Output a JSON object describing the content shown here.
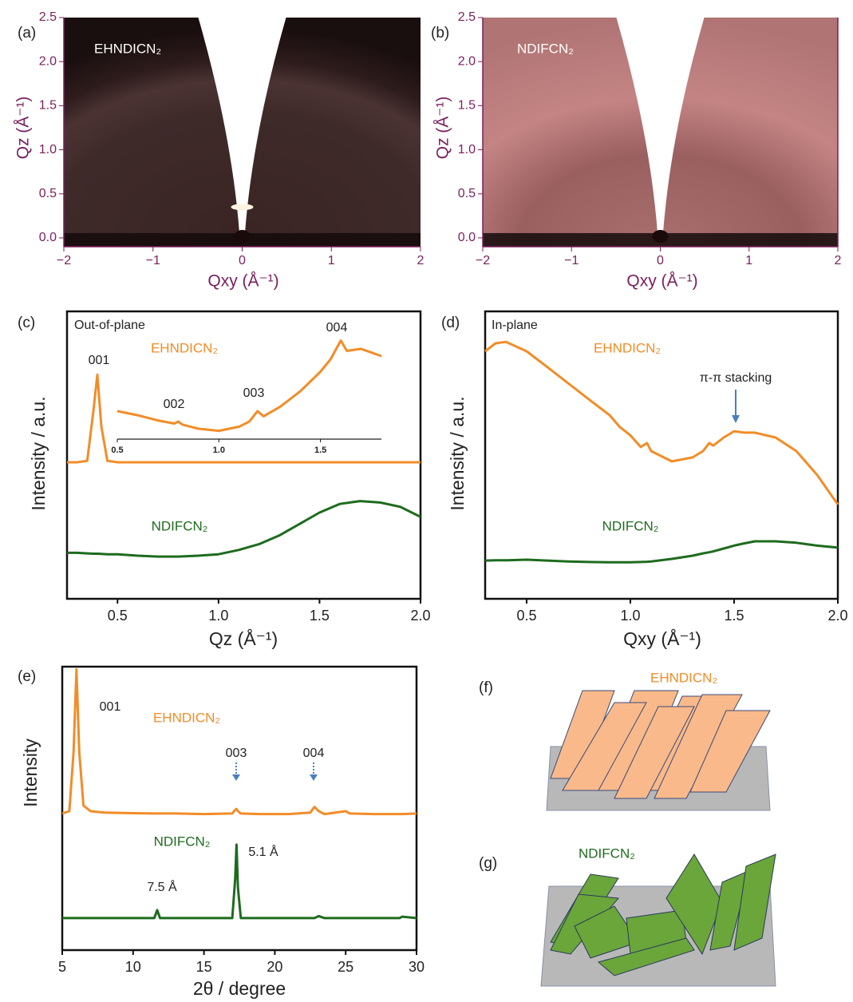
{
  "chart_data": [
    {
      "type": "image",
      "panel_label": "(a)",
      "label": "EHNDICN₂",
      "x_label": "Qxy (Å⁻¹)",
      "y_label": "Qz (Å⁻¹)",
      "xlim": [
        -2,
        2
      ],
      "ylim": [
        -0.1,
        2.5
      ],
      "xticks": [
        {
          "value": -2,
          "label": "−2"
        },
        {
          "value": -1,
          "label": "−1"
        },
        0,
        1,
        2
      ],
      "yticks": [
        {
          "value": 0,
          "label": "0.0"
        },
        0.5,
        {
          "value": 1,
          "label": "1.0"
        },
        1.5,
        {
          "value": 2,
          "label": "2.0"
        },
        2.5
      ],
      "axis_color": "#7a1f5c"
    },
    {
      "type": "image",
      "panel_label": "(b)",
      "label": "NDIFCN₂",
      "x_label": "Qxy (Å⁻¹)",
      "y_label": "Qz (Å⁻¹)",
      "xlim": [
        -2,
        2
      ],
      "ylim": [
        -0.1,
        2.5
      ],
      "xticks": [
        {
          "value": -2,
          "label": "−2"
        },
        {
          "value": -1,
          "label": "−1"
        },
        0,
        1,
        2
      ],
      "yticks": [
        {
          "value": 0,
          "label": "0.0"
        },
        0.5,
        {
          "value": 1,
          "label": "1.0"
        },
        1.5,
        {
          "value": 2,
          "label": "2.0"
        },
        2.5
      ],
      "axis_color": "#7a1f5c"
    },
    {
      "type": "line",
      "panel_label": "(c)",
      "x_label": "Qz (Å⁻¹)",
      "y_label": "Intensity / a.u.",
      "annotations": [
        "Out-of-plane",
        "001"
      ],
      "xlim": [
        0.25,
        2.0
      ],
      "ylim": [
        0,
        10
      ],
      "xticks": [
        0.5,
        {
          "value": 1,
          "label": "1.0"
        },
        1.5,
        {
          "value": 2,
          "label": "2.0"
        }
      ],
      "x": [
        0.25,
        0.3,
        0.35,
        0.38,
        0.4,
        0.42,
        0.45,
        0.5,
        0.6,
        0.7,
        0.8,
        0.9,
        1.0,
        1.1,
        1.2,
        1.3,
        1.4,
        1.5,
        1.6,
        1.7,
        1.8,
        1.9,
        2.0
      ],
      "series": [
        {
          "name": "EHNDICN₂",
          "color": "#f28c28",
          "values": [
            4.75,
            4.75,
            4.8,
            6.5,
            7.8,
            6.0,
            4.8,
            4.75,
            4.75,
            4.75,
            4.75,
            4.75,
            4.75,
            4.75,
            4.75,
            4.75,
            4.75,
            4.75,
            4.75,
            4.75,
            4.75,
            4.75,
            4.75
          ]
        },
        {
          "name": "NDIFCN₂",
          "color": "#1e6b1e",
          "values": [
            1.6,
            1.6,
            1.58,
            1.57,
            1.57,
            1.56,
            1.55,
            1.55,
            1.5,
            1.47,
            1.47,
            1.5,
            1.55,
            1.7,
            1.9,
            2.2,
            2.6,
            3.0,
            3.3,
            3.4,
            3.35,
            3.2,
            2.85
          ]
        }
      ]
    },
    {
      "type": "line",
      "annotations": [
        "002",
        "003",
        "004"
      ],
      "xlim": [
        0.5,
        1.8
      ],
      "ylim": [
        0,
        10
      ],
      "xticks": [
        0.5,
        {
          "value": 1,
          "label": "1.0"
        },
        1.5
      ],
      "x": [
        0.5,
        0.6,
        0.7,
        0.78,
        0.8,
        0.82,
        0.9,
        1.0,
        1.1,
        1.15,
        1.19,
        1.22,
        1.3,
        1.4,
        1.5,
        1.55,
        1.6,
        1.63,
        1.7,
        1.8
      ],
      "series": [
        {
          "color": "#f28c28",
          "values": [
            2.7,
            2.3,
            1.8,
            1.5,
            1.7,
            1.4,
            1.0,
            0.8,
            1.2,
            1.7,
            2.7,
            2.2,
            3.1,
            4.6,
            6.5,
            7.7,
            9.5,
            8.5,
            8.7,
            8.0
          ]
        }
      ]
    },
    {
      "type": "line",
      "panel_label": "(d)",
      "x_label": "Qxy (Å⁻¹)",
      "y_label": "Intensity / a.u.",
      "annotations": [
        "In-plane",
        "π-π stacking"
      ],
      "xlim": [
        0.3,
        2.0
      ],
      "ylim": [
        0,
        10
      ],
      "xticks": [
        0.5,
        {
          "value": 1,
          "label": "1.0"
        },
        1.5,
        {
          "value": 2,
          "label": "2.0"
        }
      ],
      "x": [
        0.3,
        0.35,
        0.4,
        0.5,
        0.6,
        0.7,
        0.8,
        0.9,
        0.95,
        1.0,
        1.05,
        1.08,
        1.1,
        1.2,
        1.3,
        1.35,
        1.38,
        1.4,
        1.45,
        1.5,
        1.55,
        1.6,
        1.7,
        1.8,
        1.9,
        2.0
      ],
      "series": [
        {
          "name": "EHNDICN₂",
          "color": "#f28c28",
          "values": [
            8.61,
            8.89,
            8.94,
            8.61,
            8.06,
            7.5,
            6.94,
            6.39,
            5.97,
            5.69,
            5.28,
            5.42,
            5.14,
            4.78,
            4.92,
            5.14,
            5.42,
            5.33,
            5.61,
            5.83,
            5.78,
            5.78,
            5.61,
            5.14,
            4.31,
            3.28
          ]
        },
        {
          "name": "NDIFCN₂",
          "color": "#1e6b1e",
          "values": [
            1.33,
            1.34,
            1.34,
            1.36,
            1.33,
            1.3,
            1.28,
            1.27,
            1.27,
            1.27,
            1.28,
            1.29,
            1.3,
            1.39,
            1.5,
            1.58,
            1.62,
            1.65,
            1.75,
            1.85,
            1.93,
            2.0,
            2.0,
            1.95,
            1.85,
            1.78
          ]
        }
      ]
    },
    {
      "type": "line",
      "panel_label": "(e)",
      "x_label": "2θ / degree",
      "y_label": "Intensity",
      "annotations": [
        "001",
        "003",
        "004",
        "7.5 Å",
        "5.1 Å"
      ],
      "xlim": [
        5,
        30
      ],
      "ylim": [
        0,
        10
      ],
      "xticks": [
        5,
        10,
        15,
        20,
        25,
        30
      ],
      "x": [
        5,
        5.5,
        5.8,
        6.0,
        6.2,
        6.5,
        7,
        8,
        10,
        11.5,
        11.7,
        11.9,
        13,
        15,
        17,
        17.2,
        17.3,
        17.4,
        17.6,
        19,
        21,
        22.5,
        22.8,
        23.1,
        23.5,
        25,
        25.3,
        27,
        28.8,
        29,
        30
      ],
      "series": [
        {
          "name": "EHNDICN₂",
          "color": "#f28c28",
          "values": [
            4.82,
            4.9,
            7.0,
            9.9,
            7.0,
            5.1,
            4.9,
            4.85,
            4.83,
            4.82,
            4.82,
            4.82,
            4.82,
            4.8,
            4.82,
            4.95,
            4.98,
            4.9,
            4.82,
            4.8,
            4.8,
            4.85,
            5.05,
            4.9,
            4.8,
            4.9,
            4.82,
            4.8,
            4.8,
            4.8,
            4.82
          ]
        },
        {
          "name": "NDIFCN₂",
          "color": "#1e6b1e",
          "values": [
            1.13,
            1.13,
            1.13,
            1.13,
            1.13,
            1.13,
            1.13,
            1.13,
            1.13,
            1.13,
            1.41,
            1.13,
            1.13,
            1.13,
            1.13,
            2.5,
            3.72,
            2.2,
            1.13,
            1.13,
            1.13,
            1.13,
            1.13,
            1.2,
            1.13,
            1.13,
            1.13,
            1.13,
            1.13,
            1.18,
            1.13
          ]
        }
      ]
    }
  ],
  "schematics": [
    {
      "panel_label": "(f)",
      "label": "EHNDICN₂",
      "color": "#f28c28"
    },
    {
      "panel_label": "(g)",
      "label": "NDIFCN₂",
      "color": "#1e6b1e"
    }
  ]
}
